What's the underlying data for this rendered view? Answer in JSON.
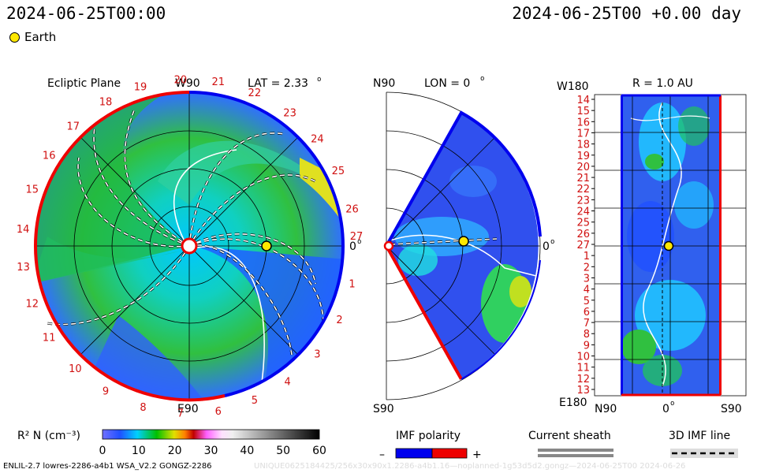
{
  "header": {
    "datetime_left": "2024-06-25T00:00",
    "datetime_right": "2024-06-25T00 +0.00 day",
    "earth_label": "Earth"
  },
  "ecliptic": {
    "title": "Ecliptic Plane",
    "top_label": "W90",
    "bottom_label": "E90",
    "lat_label": "LAT = 2.33",
    "zero_label": "0",
    "numbers": [
      "1",
      "2",
      "3",
      "4",
      "5",
      "6",
      "7",
      "8",
      "9",
      "10",
      "11",
      "12",
      "13",
      "14",
      "15",
      "16",
      "17",
      "18",
      "19",
      "20",
      "21",
      "22",
      "23",
      "24",
      "25",
      "26",
      "27"
    ]
  },
  "meridional": {
    "top_label": "N90",
    "bottom_label": "S90",
    "lon_label": "LON = 0",
    "zero_label": "0"
  },
  "radial": {
    "r_label": "R = 1.0 AU",
    "top_label": "W180",
    "bottom_label": "E180",
    "x_labels": [
      "N90",
      "0",
      "S90"
    ],
    "y_labels": [
      "14",
      "15",
      "16",
      "17",
      "18",
      "19",
      "20",
      "21",
      "22",
      "23",
      "24",
      "25",
      "26",
      "27",
      "1",
      "2",
      "3",
      "4",
      "5",
      "6",
      "7",
      "8",
      "9",
      "10",
      "11",
      "12",
      "13"
    ]
  },
  "colorbar": {
    "label": "R² N (cm⁻³)",
    "ticks": [
      "0",
      "10",
      "20",
      "30",
      "40",
      "50",
      "60"
    ]
  },
  "legends": {
    "imf_title": "IMF polarity",
    "imf_minus": "–",
    "imf_plus": "+",
    "sheath_title": "Current sheath",
    "imf_line_title": "3D IMF line"
  },
  "footer": {
    "left": "ENLIL-2.7 lowres-2286-a4b1 WSA_V2.2 GONGZ-2286",
    "watermark": "UNIQUE0625184425/256x30x90x1.2286-a4b1.16—noplanned-1g53d5d2.gongz—2024-06-25T00 2024-06-26"
  },
  "colors": {
    "imf_negative": "#0000ee",
    "imf_positive": "#ee0000",
    "earth": "#ffe800"
  }
}
